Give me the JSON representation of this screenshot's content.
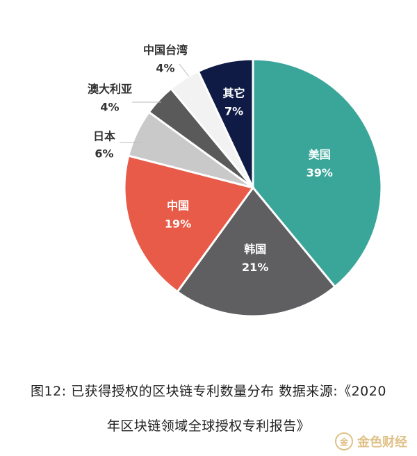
{
  "chart_data": {
    "type": "pie",
    "slices": [
      {
        "label": "美国",
        "value": 39,
        "display": "39%",
        "color": "#3aa69a",
        "text_color": "#ffffff"
      },
      {
        "label": "韩国",
        "value": 21,
        "display": "21%",
        "color": "#5f5e60",
        "text_color": "#ffffff"
      },
      {
        "label": "中国",
        "value": 19,
        "display": "19%",
        "color": "#e85b48",
        "text_color": "#ffffff"
      },
      {
        "label": "日本",
        "value": 6,
        "display": "6%",
        "color": "#c9c9c9",
        "text_color": "#333333"
      },
      {
        "label": "澳大利亚",
        "value": 4,
        "display": "4%",
        "color": "#5a5a5a",
        "text_color": "#333333"
      },
      {
        "label": "中国台湾",
        "value": 4,
        "display": "4%",
        "color": "#f2f2f2",
        "text_color": "#333333"
      },
      {
        "label": "其它",
        "value": 7,
        "display": "7%",
        "color": "#0f1b45",
        "text_color": "#ffffff"
      }
    ]
  },
  "caption_line1": "图12: 已获得授权的区块链专利数量分布   数据来源:《2020",
  "caption_line2": "年区块链领域全球授权专利报告》",
  "watermark": {
    "logo": "金",
    "text": "金色财经"
  }
}
